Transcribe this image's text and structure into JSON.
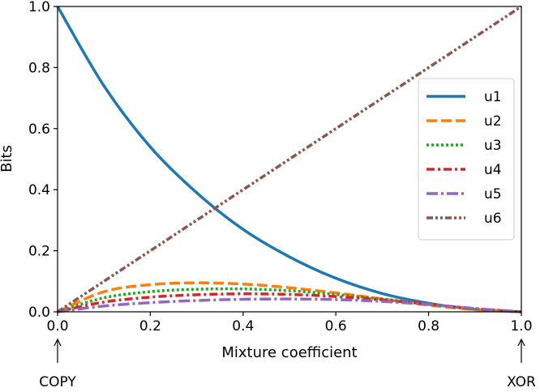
{
  "chart_data": {
    "type": "line",
    "xlabel": "Mixture coefficient",
    "ylabel": "Bits",
    "xlim": [
      0.0,
      1.0
    ],
    "ylim": [
      0.0,
      1.0
    ],
    "x_ticks": [
      "0.0",
      "0.2",
      "0.4",
      "0.6",
      "0.8",
      "1.0"
    ],
    "y_ticks": [
      "0.0",
      "0.2",
      "0.4",
      "0.6",
      "0.8",
      "1.0"
    ],
    "grid": false,
    "legend_position": "center-right",
    "annotations": [
      {
        "text": "COPY",
        "x": 0.0,
        "arrow": "up"
      },
      {
        "text": "XOR",
        "x": 1.0,
        "arrow": "up"
      }
    ],
    "x": [
      0.0,
      0.1,
      0.2,
      0.3,
      0.4,
      0.5,
      0.6,
      0.7,
      0.8,
      0.9,
      1.0
    ],
    "series": [
      {
        "name": "u1",
        "color": "#1f77b4",
        "dash": "solid",
        "values": [
          1.0,
          0.74,
          0.54,
          0.39,
          0.27,
          0.18,
          0.11,
          0.06,
          0.028,
          0.008,
          0.0
        ]
      },
      {
        "name": "u2",
        "color": "#ff7f0e",
        "dash": "dashed",
        "values": [
          0.0,
          0.066,
          0.089,
          0.095,
          0.091,
          0.079,
          0.062,
          0.042,
          0.022,
          0.007,
          0.0
        ]
      },
      {
        "name": "u3",
        "color": "#2ca02c",
        "dash": "dotted",
        "values": [
          0.0,
          0.046,
          0.066,
          0.074,
          0.075,
          0.069,
          0.057,
          0.042,
          0.025,
          0.009,
          0.0
        ]
      },
      {
        "name": "u4",
        "color": "#d62728",
        "dash": "dashdot",
        "values": [
          0.0,
          0.032,
          0.048,
          0.056,
          0.059,
          0.057,
          0.05,
          0.039,
          0.025,
          0.01,
          0.0
        ]
      },
      {
        "name": "u5",
        "color": "#9467bd",
        "dash": "longdashdot",
        "values": [
          0.0,
          0.019,
          0.03,
          0.037,
          0.041,
          0.042,
          0.04,
          0.034,
          0.024,
          0.011,
          0.0
        ]
      },
      {
        "name": "u6",
        "color": "#8c564b",
        "dash": "dashdotdot",
        "values": [
          0.0,
          0.1,
          0.2,
          0.3,
          0.4,
          0.5,
          0.6,
          0.7,
          0.8,
          0.9,
          1.0
        ]
      }
    ]
  }
}
